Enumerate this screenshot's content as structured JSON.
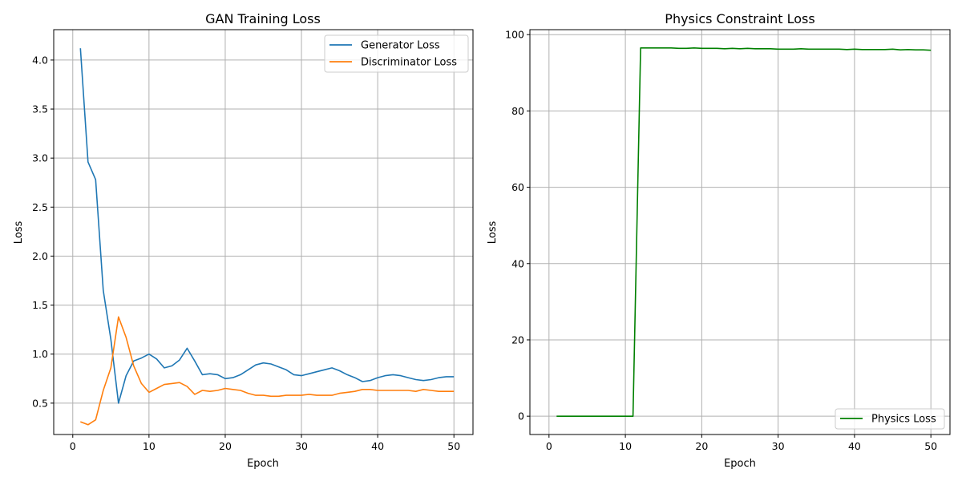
{
  "chart_data": [
    {
      "type": "line",
      "title": "GAN Training Loss",
      "xlabel": "Epoch",
      "ylabel": "Loss",
      "xlim": [
        -2.5,
        52.5
      ],
      "ylim": [
        0.18,
        4.31
      ],
      "xticks": [
        0,
        10,
        20,
        30,
        40,
        50
      ],
      "yticks": [
        0.5,
        1.0,
        1.5,
        2.0,
        2.5,
        3.0,
        3.5,
        4.0
      ],
      "ytick_labels": [
        "0.5",
        "1.0",
        "1.5",
        "2.0",
        "2.5",
        "3.0",
        "3.5",
        "4.0"
      ],
      "grid": true,
      "legend": "upper-right",
      "x": [
        1,
        2,
        3,
        4,
        5,
        6,
        7,
        8,
        9,
        10,
        11,
        12,
        13,
        14,
        15,
        16,
        17,
        18,
        19,
        20,
        21,
        22,
        23,
        24,
        25,
        26,
        27,
        28,
        29,
        30,
        31,
        32,
        33,
        34,
        35,
        36,
        37,
        38,
        39,
        40,
        41,
        42,
        43,
        44,
        45,
        46,
        47,
        48,
        49,
        50
      ],
      "series": [
        {
          "name": "Generator Loss",
          "color": "#1f77b4",
          "values": [
            4.12,
            2.96,
            2.78,
            1.65,
            1.15,
            0.5,
            0.78,
            0.93,
            0.96,
            1.0,
            0.95,
            0.86,
            0.88,
            0.94,
            1.06,
            0.93,
            0.79,
            0.8,
            0.79,
            0.75,
            0.76,
            0.79,
            0.84,
            0.89,
            0.91,
            0.9,
            0.87,
            0.84,
            0.79,
            0.78,
            0.8,
            0.82,
            0.84,
            0.86,
            0.83,
            0.79,
            0.76,
            0.72,
            0.73,
            0.76,
            0.78,
            0.79,
            0.78,
            0.76,
            0.74,
            0.73,
            0.74,
            0.76,
            0.77,
            0.77
          ]
        },
        {
          "name": "Discriminator Loss",
          "color": "#ff7f0e",
          "values": [
            0.31,
            0.28,
            0.33,
            0.63,
            0.86,
            1.38,
            1.17,
            0.88,
            0.7,
            0.61,
            0.65,
            0.69,
            0.7,
            0.71,
            0.67,
            0.59,
            0.63,
            0.62,
            0.63,
            0.65,
            0.64,
            0.63,
            0.6,
            0.58,
            0.58,
            0.57,
            0.57,
            0.58,
            0.58,
            0.58,
            0.59,
            0.58,
            0.58,
            0.58,
            0.6,
            0.61,
            0.62,
            0.64,
            0.64,
            0.63,
            0.63,
            0.63,
            0.63,
            0.63,
            0.62,
            0.64,
            0.63,
            0.62,
            0.62,
            0.62
          ]
        }
      ]
    },
    {
      "type": "line",
      "title": "Physics Constraint Loss",
      "xlabel": "Epoch",
      "ylabel": "Loss",
      "xlim": [
        -2.5,
        52.5
      ],
      "ylim": [
        -4.8,
        101.3
      ],
      "xticks": [
        0,
        10,
        20,
        30,
        40,
        50
      ],
      "yticks": [
        0,
        20,
        40,
        60,
        80,
        100
      ],
      "ytick_labels": [
        "0",
        "20",
        "40",
        "60",
        "80",
        "100"
      ],
      "grid": true,
      "legend": "lower-right",
      "x": [
        1,
        2,
        3,
        4,
        5,
        6,
        7,
        8,
        9,
        10,
        11,
        12,
        13,
        14,
        15,
        16,
        17,
        18,
        19,
        20,
        21,
        22,
        23,
        24,
        25,
        26,
        27,
        28,
        29,
        30,
        31,
        32,
        33,
        34,
        35,
        36,
        37,
        38,
        39,
        40,
        41,
        42,
        43,
        44,
        45,
        46,
        47,
        48,
        49,
        50
      ],
      "series": [
        {
          "name": "Physics Loss",
          "color": "#008000",
          "values": [
            0,
            0,
            0,
            0,
            0,
            0,
            0,
            0,
            0,
            0,
            0,
            96.5,
            96.5,
            96.5,
            96.5,
            96.5,
            96.4,
            96.4,
            96.5,
            96.4,
            96.4,
            96.4,
            96.3,
            96.4,
            96.3,
            96.4,
            96.3,
            96.3,
            96.3,
            96.2,
            96.2,
            96.2,
            96.3,
            96.2,
            96.2,
            96.2,
            96.2,
            96.2,
            96.1,
            96.2,
            96.1,
            96.1,
            96.1,
            96.1,
            96.2,
            96.0,
            96.1,
            96.0,
            96.0,
            95.9
          ]
        }
      ]
    }
  ]
}
